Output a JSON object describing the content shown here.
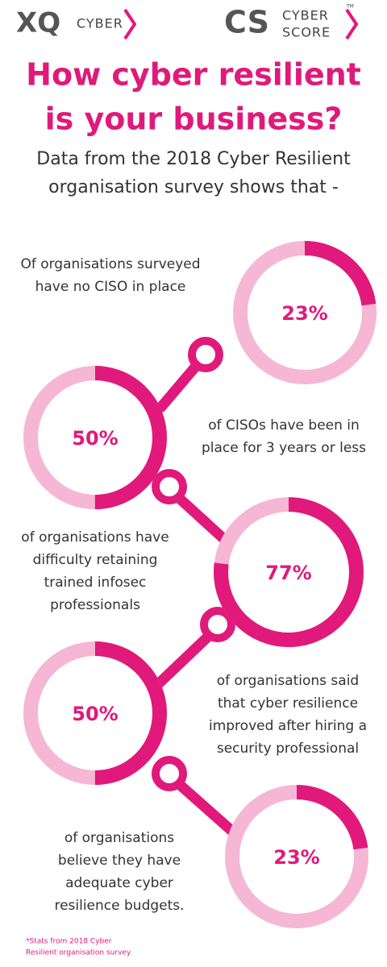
{
  "header": {
    "left_logo": {
      "mark": "XQ",
      "word": "CYBER"
    },
    "right_logo": {
      "mark": "CS",
      "words": [
        "CYBER",
        "SCORE"
      ],
      "trademark": "TM"
    }
  },
  "title": [
    "How cyber resilient",
    "is your business?"
  ],
  "subtitle": [
    "Data from the 2018 Cyber Resilient",
    "organisation survey shows that -"
  ],
  "stats": [
    {
      "value": 23,
      "value_label": "23%",
      "text": [
        "Of organisations surveyed",
        "have no CISO in place"
      ]
    },
    {
      "value": 50,
      "value_label": "50%",
      "text": [
        "of CISOs have been in",
        "place for 3 years or less"
      ]
    },
    {
      "value": 77,
      "value_label": "77%",
      "text": [
        "of organisations have",
        "difficulty retaining",
        "trained infosec",
        "professionals"
      ]
    },
    {
      "value": 50,
      "value_label": "50%",
      "text": [
        "of organisations said",
        "that cyber resilience",
        "improved after hiring a",
        "security professional"
      ]
    },
    {
      "value": 23,
      "value_label": "23%",
      "text": [
        "of organisations",
        "believe they have",
        "adequate cyber",
        "resilience budgets."
      ]
    }
  ],
  "footnote": [
    "*Stats from 2018 Cyber",
    "Resilient organisation survey"
  ]
}
